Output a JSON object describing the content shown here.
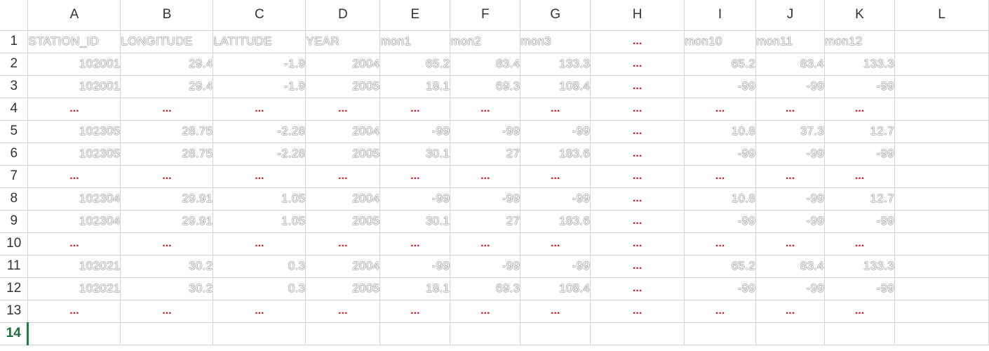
{
  "columns": [
    "A",
    "B",
    "C",
    "D",
    "E",
    "F",
    "G",
    "H",
    "I",
    "J",
    "K",
    "L"
  ],
  "rows": [
    {
      "num": "1",
      "cells": [
        "STATION_ID",
        "LONGITUDE",
        "LATITUDE",
        "YEAR",
        "mon1",
        "mon2",
        "mon3",
        "...",
        "mon10",
        "mon11",
        "mon12",
        ""
      ]
    },
    {
      "num": "2",
      "cells": [
        "102001",
        "29.4",
        "-1.9",
        "2004",
        "65.2",
        "83.4",
        "133.3",
        "...",
        "65.2",
        "83.4",
        "133.3",
        ""
      ]
    },
    {
      "num": "3",
      "cells": [
        "102001",
        "29.4",
        "-1.9",
        "2005",
        "18.1",
        "69.3",
        "108.4",
        "...",
        "-99",
        "-99",
        "-99",
        ""
      ]
    },
    {
      "num": "4",
      "cells": [
        "...",
        "...",
        "...",
        "...",
        "...",
        "...",
        "...",
        "...",
        "...",
        "...",
        "...",
        ""
      ]
    },
    {
      "num": "5",
      "cells": [
        "102305",
        "28.75",
        "-2.28",
        "2004",
        "-99",
        "-99",
        "-99",
        "...",
        "10.8",
        "37.3",
        "12.7",
        ""
      ]
    },
    {
      "num": "6",
      "cells": [
        "102305",
        "28.75",
        "-2.28",
        "2005",
        "30.1",
        "27",
        "183.6",
        "...",
        "-99",
        "-99",
        "-99",
        ""
      ]
    },
    {
      "num": "7",
      "cells": [
        "...",
        "...",
        "...",
        "...",
        "...",
        "...",
        "...",
        "...",
        "...",
        "...",
        "...",
        ""
      ]
    },
    {
      "num": "8",
      "cells": [
        "102304",
        "29.91",
        "1.05",
        "2004",
        "-99",
        "-99",
        "-99",
        "...",
        "10.8",
        "-99",
        "12.7",
        ""
      ]
    },
    {
      "num": "9",
      "cells": [
        "102304",
        "29.91",
        "1.05",
        "2005",
        "30.1",
        "27",
        "183.6",
        "...",
        "-99",
        "-99",
        "-99",
        ""
      ]
    },
    {
      "num": "10",
      "cells": [
        "...",
        "...",
        "...",
        "...",
        "...",
        "...",
        "...",
        "...",
        "...",
        "...",
        "...",
        ""
      ]
    },
    {
      "num": "11",
      "cells": [
        "102021",
        "30.2",
        "0.3",
        "2004",
        "-99",
        "-99",
        "-99",
        "...",
        "65.2",
        "83.4",
        "133.3",
        ""
      ]
    },
    {
      "num": "12",
      "cells": [
        "102021",
        "30.2",
        "0.3",
        "2005",
        "18.1",
        "69.3",
        "108.4",
        "...",
        "-99",
        "-99",
        "-99",
        ""
      ]
    },
    {
      "num": "13",
      "cells": [
        "...",
        "...",
        "...",
        "...",
        "...",
        "...",
        "...",
        "...",
        "...",
        "...",
        "...",
        ""
      ]
    },
    {
      "num": "14",
      "cells": [
        "",
        "",
        "",
        "",
        "",
        "",
        "",
        "",
        "",
        "",
        "",
        ""
      ]
    }
  ],
  "active_row": "14",
  "colors": {
    "ellipsis": "#e0141e",
    "active_row_header": "#1e6f3a",
    "gridline": "#d4d4d4"
  }
}
